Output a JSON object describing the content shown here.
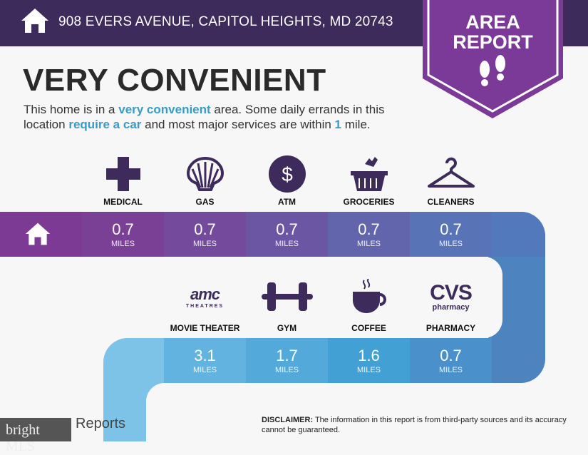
{
  "header": {
    "address": "908 EVERS AVENUE, CAPITOL HEIGHTS, MD 20743",
    "icon": "home-icon"
  },
  "badge": {
    "line1": "AREA",
    "line2": "REPORT",
    "icon": "footprints-icon"
  },
  "title": "VERY CONVENIENT",
  "description": {
    "p1": "This home is in a ",
    "h1": "very convenient",
    "p2": " area. Some daily errands in this location ",
    "h2": "require a car",
    "p3": " and most major services are within ",
    "h3": "1",
    "p4": " mile."
  },
  "top_row": [
    {
      "label": "MEDICAL",
      "value": "0.7",
      "unit": "MILES",
      "icon": "medical-cross-icon",
      "color": "#7a4096"
    },
    {
      "label": "GAS",
      "value": "0.7",
      "unit": "MILES",
      "icon": "shell-icon",
      "color": "#744a9c"
    },
    {
      "label": "ATM",
      "value": "0.7",
      "unit": "MILES",
      "icon": "dollar-icon",
      "color": "#6b56a4"
    },
    {
      "label": "GROCERIES",
      "value": "0.7",
      "unit": "MILES",
      "icon": "basket-icon",
      "color": "#6264ac"
    },
    {
      "label": "CLEANERS",
      "value": "0.7",
      "unit": "MILES",
      "icon": "hanger-icon",
      "color": "#5873b6"
    }
  ],
  "bottom_row": [
    {
      "label": "MOVIE THEATER",
      "value": "3.1",
      "unit": "MILES",
      "icon": "amc-theatres-logo",
      "logo": "amc",
      "logo_sub": "THEATRES",
      "color": "#62b3e0"
    },
    {
      "label": "GYM",
      "value": "1.7",
      "unit": "MILES",
      "icon": "dumbbell-icon",
      "color": "#52a9da"
    },
    {
      "label": "COFFEE",
      "value": "1.6",
      "unit": "MILES",
      "icon": "coffee-cup-icon",
      "color": "#42a0d4"
    },
    {
      "label": "PHARMACY",
      "value": "0.7",
      "unit": "MILES",
      "icon": "cvs-pharmacy-logo",
      "logo": "CVS",
      "logo_sub": "pharmacy",
      "color": "#4a90cb"
    }
  ],
  "footer": {
    "brand": "Reports",
    "watermark": "bright MLS",
    "disclaimer_label": "DISCLAIMER:",
    "disclaimer": " The information in this report is from third-party sources and its accuracy cannot be guaranteed."
  }
}
